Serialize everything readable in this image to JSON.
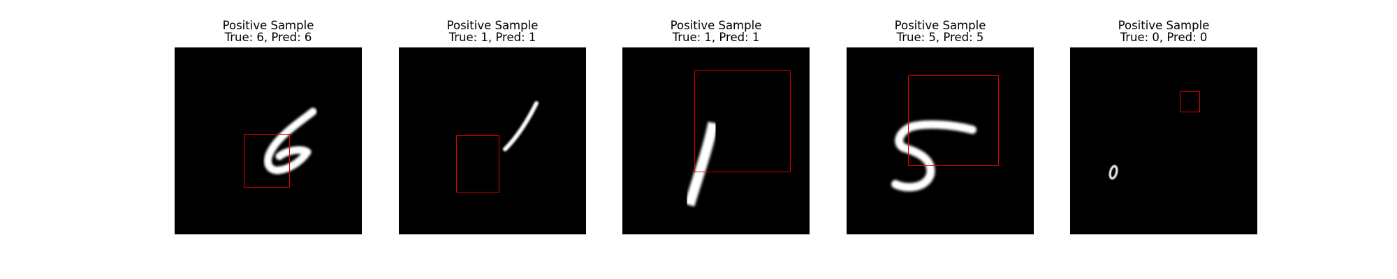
{
  "figure": {
    "panels": [
      {
        "heading": "Positive Sample",
        "subtitle": "True: 6, Pred: 6",
        "true_label": 6,
        "pred_label": 6,
        "box_color": "#e00000"
      },
      {
        "heading": "Positive Sample",
        "subtitle": "True: 1, Pred: 1",
        "true_label": 1,
        "pred_label": 1,
        "box_color": "#e00000"
      },
      {
        "heading": "Positive Sample",
        "subtitle": "True: 1, Pred: 1",
        "true_label": 1,
        "pred_label": 1,
        "box_color": "#e00000"
      },
      {
        "heading": "Positive Sample",
        "subtitle": "True: 5, Pred: 5",
        "true_label": 5,
        "pred_label": 5,
        "box_color": "#e00000"
      },
      {
        "heading": "Positive Sample",
        "subtitle": "True: 0, Pred: 0",
        "true_label": 0,
        "pred_label": 0,
        "box_color": "#e00000"
      }
    ]
  }
}
